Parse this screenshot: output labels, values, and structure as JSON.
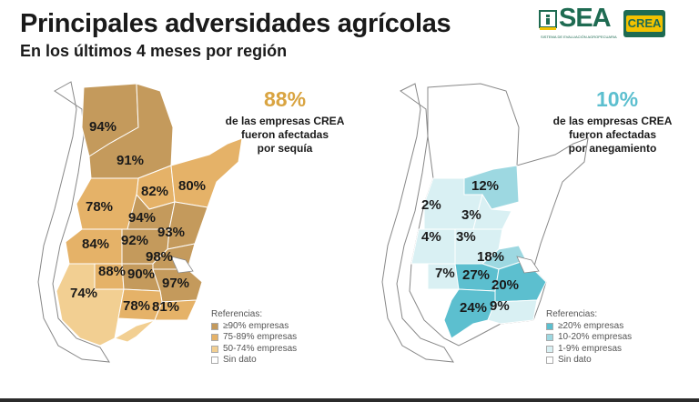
{
  "header": {
    "title": "Principales adversidades agrícolas",
    "subtitle": "En los últimos 4 meses por región"
  },
  "logos": {
    "sea": "SEA",
    "sea_tagline": "SISTEMA DE EVALUACIÓN AGROPECUARIA",
    "crea": "CREA"
  },
  "colors": {
    "drought_high": "#c49a5c",
    "drought_mid": "#e5b268",
    "drought_low": "#f2cf92",
    "flood_high": "#5cbfcf",
    "flood_mid": "#9dd8e1",
    "flood_low": "#d9f0f3",
    "no_data": "#ffffff",
    "accent_drought": "#d9a441",
    "accent_flood": "#5cbfcf"
  },
  "drought_map": {
    "stat": "88%",
    "lines": [
      "de las empresas CREA",
      "fueron afectadas",
      "por sequía"
    ],
    "regions": [
      {
        "label": "94%",
        "level": "high"
      },
      {
        "label": "91%",
        "level": "high"
      },
      {
        "label": "82%",
        "level": "mid"
      },
      {
        "label": "80%",
        "level": "mid"
      },
      {
        "label": "78%",
        "level": "mid"
      },
      {
        "label": "94%",
        "level": "high"
      },
      {
        "label": "93%",
        "level": "high"
      },
      {
        "label": "84%",
        "level": "mid"
      },
      {
        "label": "92%",
        "level": "high"
      },
      {
        "label": "98%",
        "level": "high"
      },
      {
        "label": "88%",
        "level": "mid"
      },
      {
        "label": "90%",
        "level": "high"
      },
      {
        "label": "97%",
        "level": "high"
      },
      {
        "label": "74%",
        "level": "low"
      },
      {
        "label": "78%",
        "level": "mid"
      },
      {
        "label": "81%",
        "level": "mid"
      }
    ],
    "legend": {
      "title": "Referencias:",
      "items": [
        "≥90% empresas",
        "75-89% empresas",
        "50-74% empresas",
        "Sin dato"
      ]
    }
  },
  "flood_map": {
    "stat": "10%",
    "lines": [
      "de las empresas CREA",
      "fueron afectadas",
      "por anegamiento"
    ],
    "regions": [
      {
        "label": "12%",
        "level": "mid"
      },
      {
        "label": "2%",
        "level": "low"
      },
      {
        "label": "3%",
        "level": "low"
      },
      {
        "label": "4%",
        "level": "low"
      },
      {
        "label": "3%",
        "level": "low"
      },
      {
        "label": "18%",
        "level": "mid"
      },
      {
        "label": "7%",
        "level": "low"
      },
      {
        "label": "27%",
        "level": "high"
      },
      {
        "label": "20%",
        "level": "high"
      },
      {
        "label": "24%",
        "level": "high"
      },
      {
        "label": "9%",
        "level": "low"
      }
    ],
    "legend": {
      "title": "Referencias:",
      "items": [
        "≥20% empresas",
        "10-20% empresas",
        "1-9% empresas",
        "Sin dato"
      ]
    }
  }
}
